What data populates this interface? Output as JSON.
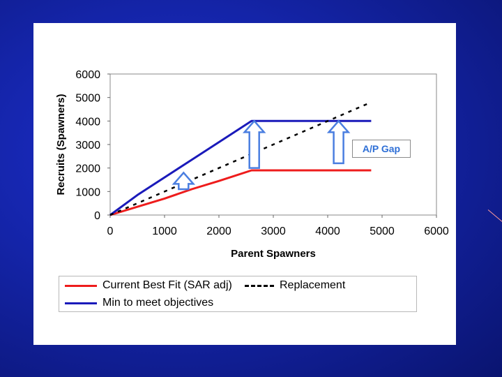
{
  "chart_data": {
    "type": "line",
    "xlabel": "Parent Spawners",
    "ylabel": "Recruits (Spawners)",
    "xlim": [
      0,
      6000
    ],
    "ylim": [
      0,
      6000
    ],
    "xticks": [
      "0",
      "1000",
      "2000",
      "3000",
      "4000",
      "5000",
      "6000"
    ],
    "yticks": [
      "0",
      "1000",
      "2000",
      "3000",
      "4000",
      "5000",
      "6000"
    ],
    "grid": false,
    "legend_position": "bottom",
    "series": [
      {
        "name": "Current Best Fit (SAR adj)",
        "color": "#ee1c1c",
        "style": "solid",
        "x": [
          0,
          500,
          1000,
          1500,
          2000,
          2600,
          4800
        ],
        "y": [
          0,
          350,
          700,
          1100,
          1450,
          1900,
          1900
        ]
      },
      {
        "name": "Min to meet objectives",
        "color": "#1a1aba",
        "style": "solid",
        "x": [
          0,
          500,
          1000,
          1500,
          2000,
          2600,
          4800
        ],
        "y": [
          0,
          850,
          1600,
          2350,
          3100,
          4000,
          4000
        ]
      },
      {
        "name": "Replacement",
        "color": "#000000",
        "style": "dashed",
        "x": [
          0,
          4800
        ],
        "y": [
          0,
          4800
        ]
      }
    ],
    "annotations": [
      {
        "type": "arrow",
        "x": 1350,
        "y_from": 1100,
        "y_to": 1800
      },
      {
        "type": "arrow",
        "x": 2650,
        "y_from": 2000,
        "y_to": 4000
      },
      {
        "type": "arrow",
        "x": 4200,
        "y_from": 2200,
        "y_to": 4000
      }
    ],
    "gap_label": "A/P Gap"
  }
}
